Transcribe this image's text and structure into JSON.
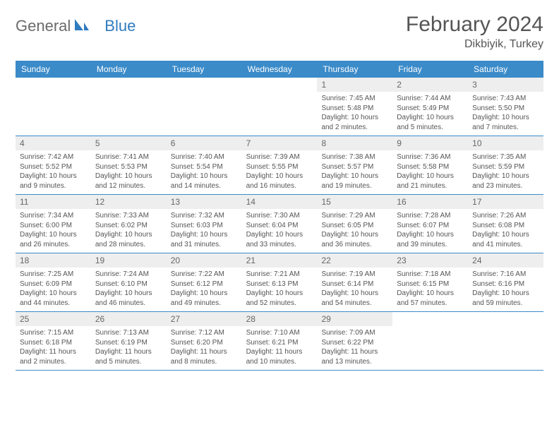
{
  "brand": {
    "word1": "General",
    "word2": "Blue"
  },
  "title": "February 2024",
  "location": "Dikbiyik, Turkey",
  "colors": {
    "header_bg": "#3b8bc9",
    "header_text": "#ffffff",
    "daynum_bg": "#eeeeee",
    "daynum_text": "#666666",
    "info_text": "#555555",
    "brand_gray": "#6b6b6b",
    "brand_blue": "#2f7bbf",
    "border": "#3b8bc9"
  },
  "day_names": [
    "Sunday",
    "Monday",
    "Tuesday",
    "Wednesday",
    "Thursday",
    "Friday",
    "Saturday"
  ],
  "weeks": [
    [
      null,
      null,
      null,
      null,
      {
        "n": "1",
        "sr": "7:45 AM",
        "ss": "5:48 PM",
        "dl": "10 hours and 2 minutes."
      },
      {
        "n": "2",
        "sr": "7:44 AM",
        "ss": "5:49 PM",
        "dl": "10 hours and 5 minutes."
      },
      {
        "n": "3",
        "sr": "7:43 AM",
        "ss": "5:50 PM",
        "dl": "10 hours and 7 minutes."
      }
    ],
    [
      {
        "n": "4",
        "sr": "7:42 AM",
        "ss": "5:52 PM",
        "dl": "10 hours and 9 minutes."
      },
      {
        "n": "5",
        "sr": "7:41 AM",
        "ss": "5:53 PM",
        "dl": "10 hours and 12 minutes."
      },
      {
        "n": "6",
        "sr": "7:40 AM",
        "ss": "5:54 PM",
        "dl": "10 hours and 14 minutes."
      },
      {
        "n": "7",
        "sr": "7:39 AM",
        "ss": "5:55 PM",
        "dl": "10 hours and 16 minutes."
      },
      {
        "n": "8",
        "sr": "7:38 AM",
        "ss": "5:57 PM",
        "dl": "10 hours and 19 minutes."
      },
      {
        "n": "9",
        "sr": "7:36 AM",
        "ss": "5:58 PM",
        "dl": "10 hours and 21 minutes."
      },
      {
        "n": "10",
        "sr": "7:35 AM",
        "ss": "5:59 PM",
        "dl": "10 hours and 23 minutes."
      }
    ],
    [
      {
        "n": "11",
        "sr": "7:34 AM",
        "ss": "6:00 PM",
        "dl": "10 hours and 26 minutes."
      },
      {
        "n": "12",
        "sr": "7:33 AM",
        "ss": "6:02 PM",
        "dl": "10 hours and 28 minutes."
      },
      {
        "n": "13",
        "sr": "7:32 AM",
        "ss": "6:03 PM",
        "dl": "10 hours and 31 minutes."
      },
      {
        "n": "14",
        "sr": "7:30 AM",
        "ss": "6:04 PM",
        "dl": "10 hours and 33 minutes."
      },
      {
        "n": "15",
        "sr": "7:29 AM",
        "ss": "6:05 PM",
        "dl": "10 hours and 36 minutes."
      },
      {
        "n": "16",
        "sr": "7:28 AM",
        "ss": "6:07 PM",
        "dl": "10 hours and 39 minutes."
      },
      {
        "n": "17",
        "sr": "7:26 AM",
        "ss": "6:08 PM",
        "dl": "10 hours and 41 minutes."
      }
    ],
    [
      {
        "n": "18",
        "sr": "7:25 AM",
        "ss": "6:09 PM",
        "dl": "10 hours and 44 minutes."
      },
      {
        "n": "19",
        "sr": "7:24 AM",
        "ss": "6:10 PM",
        "dl": "10 hours and 46 minutes."
      },
      {
        "n": "20",
        "sr": "7:22 AM",
        "ss": "6:12 PM",
        "dl": "10 hours and 49 minutes."
      },
      {
        "n": "21",
        "sr": "7:21 AM",
        "ss": "6:13 PM",
        "dl": "10 hours and 52 minutes."
      },
      {
        "n": "22",
        "sr": "7:19 AM",
        "ss": "6:14 PM",
        "dl": "10 hours and 54 minutes."
      },
      {
        "n": "23",
        "sr": "7:18 AM",
        "ss": "6:15 PM",
        "dl": "10 hours and 57 minutes."
      },
      {
        "n": "24",
        "sr": "7:16 AM",
        "ss": "6:16 PM",
        "dl": "10 hours and 59 minutes."
      }
    ],
    [
      {
        "n": "25",
        "sr": "7:15 AM",
        "ss": "6:18 PM",
        "dl": "11 hours and 2 minutes."
      },
      {
        "n": "26",
        "sr": "7:13 AM",
        "ss": "6:19 PM",
        "dl": "11 hours and 5 minutes."
      },
      {
        "n": "27",
        "sr": "7:12 AM",
        "ss": "6:20 PM",
        "dl": "11 hours and 8 minutes."
      },
      {
        "n": "28",
        "sr": "7:10 AM",
        "ss": "6:21 PM",
        "dl": "11 hours and 10 minutes."
      },
      {
        "n": "29",
        "sr": "7:09 AM",
        "ss": "6:22 PM",
        "dl": "11 hours and 13 minutes."
      },
      null,
      null
    ]
  ],
  "labels": {
    "sunrise": "Sunrise:",
    "sunset": "Sunset:",
    "daylight": "Daylight:"
  }
}
